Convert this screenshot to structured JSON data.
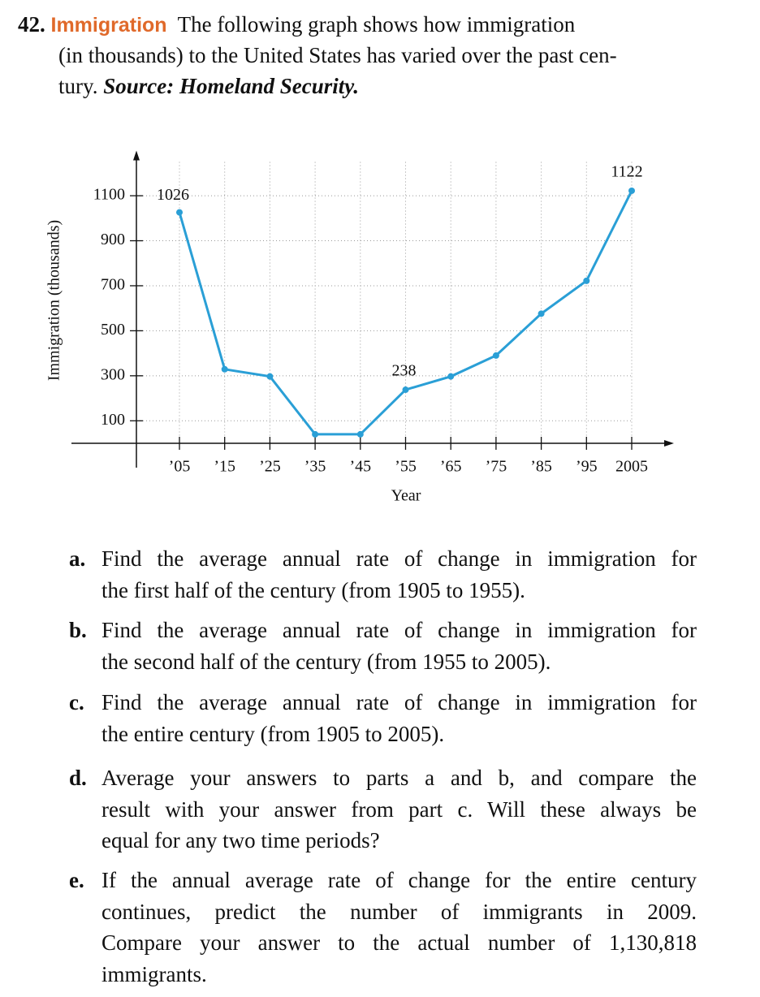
{
  "problem": {
    "number": "42.",
    "title": "Immigration",
    "lines": [
      "The following graph shows how immigration",
      "(in thousands) to the United States has varied over the past cen-",
      "tury."
    ],
    "source": "Source: Homeland Security."
  },
  "chart_data": {
    "type": "line",
    "x_label": "Year",
    "y_label": "Immigration (thousands)",
    "categories": [
      "’05",
      "’15",
      "’25",
      "’35",
      "’45",
      "’55",
      "’65",
      "’75",
      "’85",
      "’95",
      "2005"
    ],
    "values": [
      1026,
      329,
      297,
      40,
      40,
      238,
      297,
      390,
      576,
      722,
      1122
    ],
    "color": "#2a9fd6",
    "ylim": [
      0,
      1250
    ],
    "yticks": [
      100,
      300,
      500,
      700,
      900,
      1100
    ],
    "grid": true
  },
  "questions": [
    {
      "letter": "a.",
      "lines": [
        "Find the average annual rate of change in immigration for",
        "the first half of the century (from 1905 to 1955)."
      ]
    },
    {
      "letter": "b.",
      "lines": [
        "Find the average annual rate of change in immigration for",
        "the second half of the century (from 1955 to 2005)."
      ]
    },
    {
      "letter": "c.",
      "lines": [
        "Find the average annual rate of change in immigration for",
        "the entire century (from 1905 to 2005)."
      ]
    },
    {
      "letter": "d.",
      "lines": [
        "Average your answers to parts a and b, and compare the",
        "result with your answer from part c. Will these always be",
        "equal for any two time periods?"
      ]
    },
    {
      "letter": "e.",
      "lines": [
        "If the annual average rate of change for the entire century",
        "continues, predict the number of immigrants in 2009.",
        "Compare your answer to the actual number of 1,130,818",
        "immigrants."
      ]
    }
  ]
}
